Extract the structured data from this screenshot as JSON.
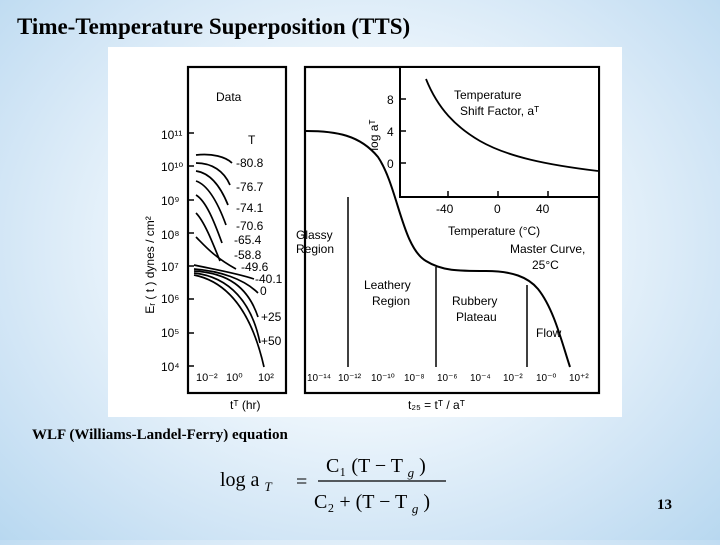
{
  "slide": {
    "title": "Time-Temperature Superposition (TTS)",
    "page_number": "13"
  },
  "figure": {
    "y_axis_label": "Eᵣ ( t ) dynes / cm²",
    "y_ticks": [
      "10¹¹",
      "10¹⁰",
      "10⁹",
      "10⁸",
      "10⁷",
      "10⁶",
      "10⁵",
      "10⁴"
    ],
    "left_panel": {
      "label": "Data",
      "temp_header": "T",
      "temps": [
        "-80.8",
        "-76.7",
        "-74.1",
        "-70.6",
        "-65.4",
        "-58.8",
        "-49.6",
        "-40.1",
        "0",
        "+25",
        "+50"
      ],
      "x_ticks": [
        "10⁻²",
        "10⁰",
        "10²"
      ],
      "x_label": "tᵀ (hr)"
    },
    "right_panel": {
      "x_ticks": [
        "10⁻¹⁴",
        "10⁻¹²",
        "10⁻¹⁰",
        "10⁻⁸",
        "10⁻⁶",
        "10⁻⁴",
        "10⁻²",
        "10⁻⁰",
        "10⁺²"
      ],
      "x_label": "t₂₅ = tᵀ / aᵀ",
      "regions": {
        "glassy_1": "Glassy",
        "glassy_2": "Region",
        "leathery_1": "Leathery",
        "leathery_2": "Region",
        "rubbery_1": "Rubbery",
        "rubbery_2": "Plateau",
        "flow": "Flow"
      },
      "master_curve_1": "Master Curve,",
      "master_curve_2": "25°C"
    },
    "inset": {
      "title_1": "Temperature",
      "title_2": "Shift Factor, aᵀ",
      "y_label": "log aᵀ",
      "y_ticks": [
        "8",
        "4",
        "0"
      ],
      "x_ticks": [
        "-40",
        "0",
        "40"
      ],
      "x_label": "Temperature (°C)"
    }
  },
  "caption": "WLF (Williams-Landel-Ferry) equation",
  "equation": {
    "lhs": "log a",
    "lhs_sub": "T",
    "equals": "=",
    "num": "C₁ (T − T",
    "num_sub": "g",
    "num_close": ")",
    "den": "C₂ + (T − T",
    "den_sub": "g",
    "den_close": ")"
  }
}
